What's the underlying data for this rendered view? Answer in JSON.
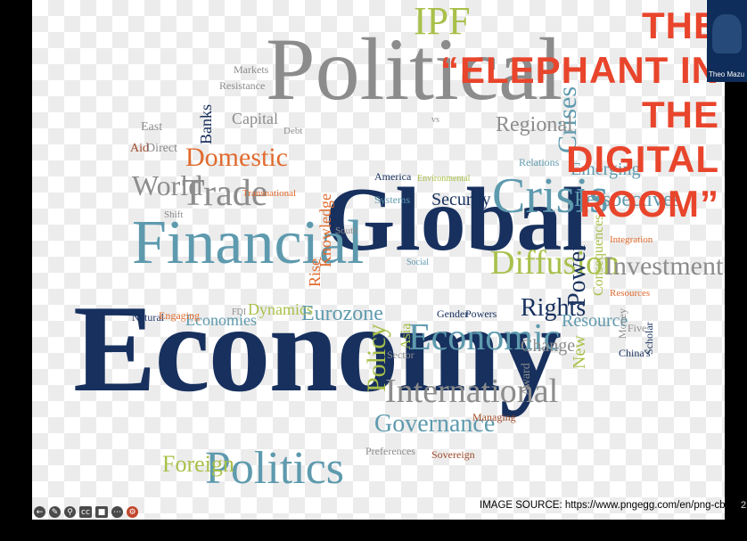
{
  "slide": {
    "title_lines": [
      "THE",
      "“ELEPHANT IN",
      "THE",
      "DIGITAL",
      "ROOM”"
    ],
    "image_source": "IMAGE SOURCE: https://www.pngegg.com/en/png-cbyqg",
    "page_number": "2"
  },
  "participant": {
    "name": "Theo Mazu"
  },
  "wordcloud": {
    "political": "Political",
    "ipf": "IPF",
    "global": "Global",
    "economy": "Economy",
    "financial": "Financial",
    "crisis": "Crisis",
    "crises": "Crises",
    "regional": "Regional",
    "domestic": "Domestic",
    "world": "World",
    "trade": "Trade",
    "diffusion": "Diffusion",
    "investment": "Investment",
    "international": "International",
    "economic": "Economic",
    "governance": "Governance",
    "politics": "Politics",
    "foreign": "Foreign",
    "policy": "Policy",
    "power": "Power",
    "rights": "Rights",
    "change": "Change",
    "eurozone": "Eurozone",
    "dynamics": "Dynamics",
    "economies": "Economies",
    "knowledge": "Knowledge",
    "rise": "Rise",
    "security": "Security",
    "perspectives": "Perspectives",
    "emerging": "Emerging",
    "resource": "Resource",
    "consequences": "Consequences",
    "new": "New",
    "banks": "Banks",
    "capital": "Capital",
    "markets": "Markets",
    "resistance": "Resistance",
    "debt": "Debt",
    "east": "East",
    "aid": "Aid",
    "direct": "Direct",
    "natural": "Natural",
    "engaging": "Engaging",
    "asia": "Asia",
    "sector": "Sector",
    "gender": "Gender",
    "powers": "Powers",
    "award": "Award",
    "preferences": "Preferences",
    "sovereign": "Sovereign",
    "managing": "Managing",
    "china": "China's",
    "scholar": "Scholar",
    "money": "Money",
    "five": "Five",
    "integration": "Integration",
    "resources": "Resources",
    "america": "America",
    "systems": "Systems",
    "environmental": "Environmental",
    "transnational": "Transnational",
    "south": "South",
    "shift": "Shift",
    "relations": "Relations",
    "social": "Social",
    "fdi": "FDI",
    "vs": "vs"
  },
  "toolbar": {
    "icons": [
      "back-arrow-icon",
      "pen-icon",
      "zoom-icon",
      "captions-icon",
      "camera-icon",
      "more-icon",
      "settings-icon"
    ]
  },
  "colors": {
    "title": "#e8452c",
    "navy": "#17305e",
    "gray": "#8c8c8c",
    "teal": "#5e9aae",
    "lime": "#a8c04a",
    "orange": "#e06a2e"
  }
}
